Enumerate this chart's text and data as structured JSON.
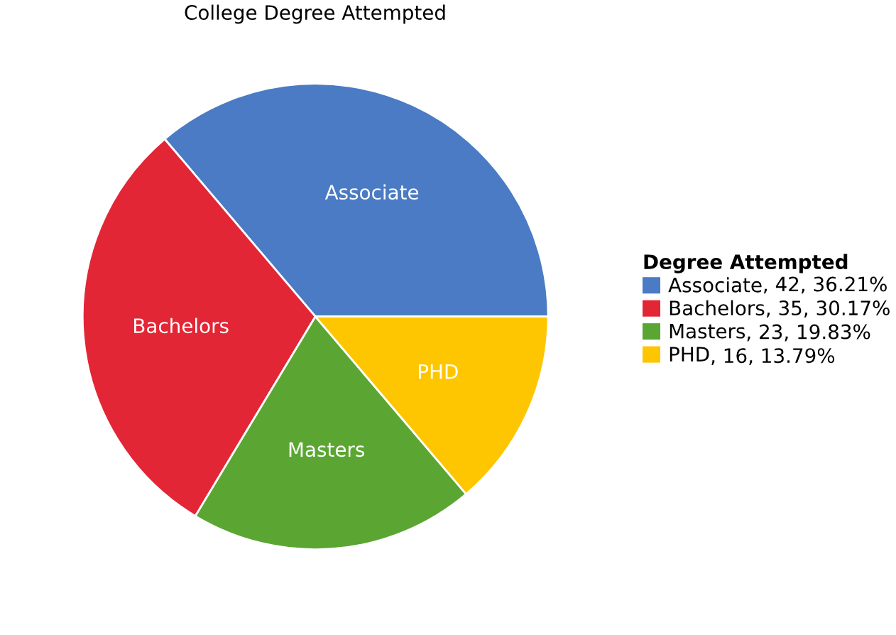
{
  "chart_data": {
    "type": "pie",
    "title": "College Degree Attempted",
    "legend_title": "Degree Attempted",
    "categories": [
      "Associate",
      "Bachelors",
      "Masters",
      "PHD"
    ],
    "values": [
      42,
      35,
      23,
      16
    ],
    "value_labels": [
      ", 42, 36.21%",
      ", 35, 30.17%",
      ", 23, 19.83%",
      ", 16, 13.79%"
    ],
    "colors": [
      "#4a7bc4",
      "#e32636",
      "#5ba633",
      "#fdc600"
    ],
    "legend": "right"
  }
}
